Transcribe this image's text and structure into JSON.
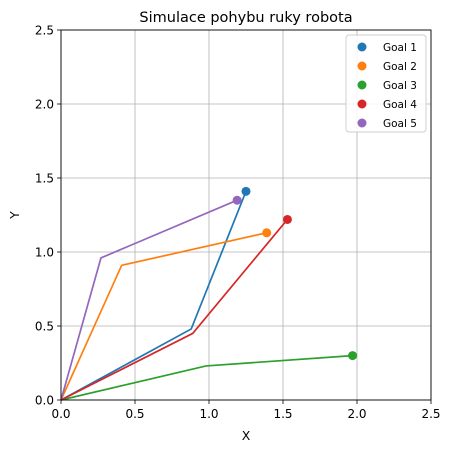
{
  "chart_data": {
    "type": "line",
    "title": "Simulace pohybu ruky robota",
    "xlabel": "X",
    "ylabel": "Y",
    "xlim": [
      0,
      2.5
    ],
    "ylim": [
      0,
      2.5
    ],
    "xticks": [
      "0.0",
      "0.5",
      "1.0",
      "1.5",
      "2.0",
      "2.5"
    ],
    "yticks": [
      "0.0",
      "0.5",
      "1.0",
      "1.5",
      "2.0",
      "2.5"
    ],
    "grid": true,
    "legend_position": "top-right",
    "series": [
      {
        "name": "Goal 1",
        "color": "#1f77b4",
        "arm": [
          [
            0,
            0
          ],
          [
            0.88,
            0.48
          ],
          [
            1.25,
            1.41
          ]
        ],
        "goal": [
          1.25,
          1.41
        ]
      },
      {
        "name": "Goal 2",
        "color": "#ff7f0e",
        "arm": [
          [
            0,
            0
          ],
          [
            0.41,
            0.91
          ],
          [
            1.39,
            1.13
          ]
        ],
        "goal": [
          1.39,
          1.13
        ]
      },
      {
        "name": "Goal 3",
        "color": "#2ca02c",
        "arm": [
          [
            0,
            0
          ],
          [
            0.98,
            0.23
          ],
          [
            1.97,
            0.3
          ]
        ],
        "goal": [
          1.97,
          0.3
        ]
      },
      {
        "name": "Goal 4",
        "color": "#d62728",
        "arm": [
          [
            0,
            0
          ],
          [
            0.89,
            0.45
          ],
          [
            1.53,
            1.22
          ]
        ],
        "goal": [
          1.53,
          1.22
        ]
      },
      {
        "name": "Goal 5",
        "color": "#9467bd",
        "arm": [
          [
            0,
            0
          ],
          [
            0.27,
            0.96
          ],
          [
            1.19,
            1.35
          ]
        ],
        "goal": [
          1.19,
          1.35
        ]
      }
    ]
  }
}
